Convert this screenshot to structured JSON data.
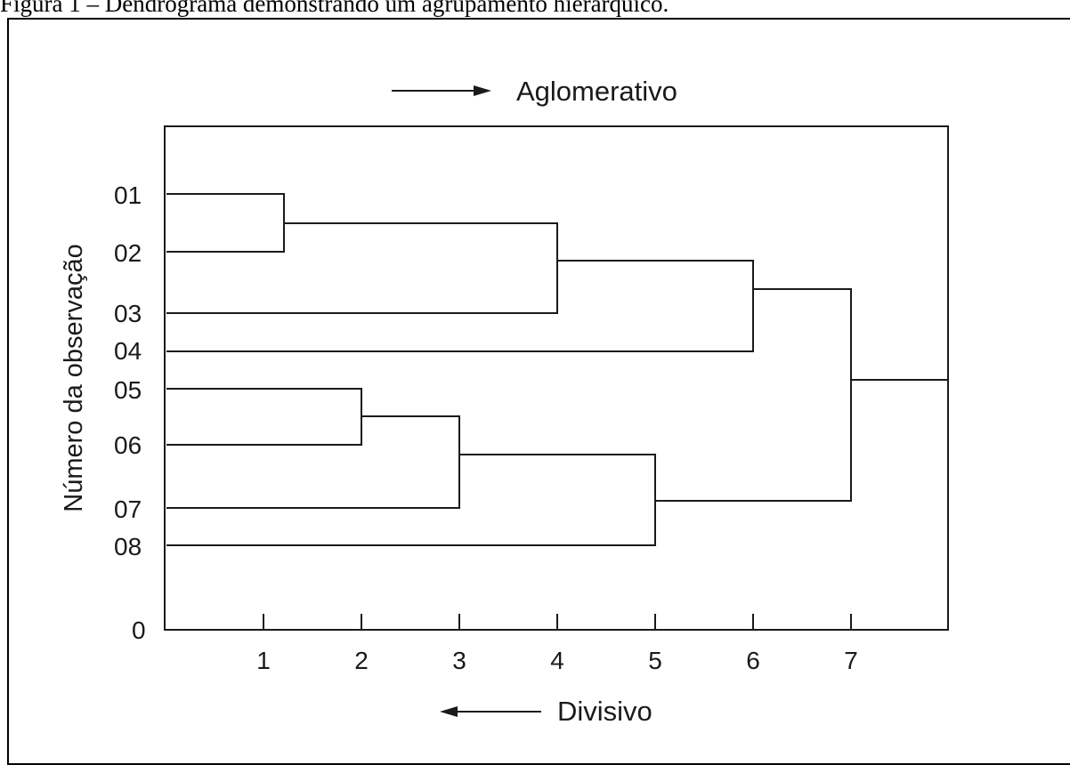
{
  "caption": "Figura 1 – Dendrograma demonstrando um agrupamento hierárquico.",
  "top_arrow_label": "Aglomerativo",
  "bottom_arrow_label": "Divisivo",
  "ylabel": "Número da observação",
  "y_ticks": [
    "01",
    "02",
    "03",
    "04",
    "05",
    "06",
    "07",
    "08",
    "0"
  ],
  "x_ticks": [
    "1",
    "2",
    "3",
    "4",
    "5",
    "6",
    "7"
  ],
  "colors": {
    "line": "#1a1a1a",
    "text": "#1a1a1a"
  },
  "dendrogram": {
    "leaves": [
      "01",
      "02",
      "03",
      "04",
      "05",
      "06",
      "07",
      "08"
    ],
    "merges": [
      {
        "a": "01",
        "b": "02",
        "level": 1.2
      },
      {
        "a": "05",
        "b": "06",
        "level": 2
      },
      {
        "a": "(05,06)",
        "b": "07",
        "level": 3
      },
      {
        "a": "(01,02)",
        "b": "03",
        "level": 4
      },
      {
        "a": "((05,06),07)",
        "b": "08",
        "level": 5
      },
      {
        "a": "((01,02),03)",
        "b": "04",
        "level": 6
      },
      {
        "a": "(((01,02),03),04)",
        "b": "(((05,06),07),08)",
        "level": 7
      }
    ]
  }
}
